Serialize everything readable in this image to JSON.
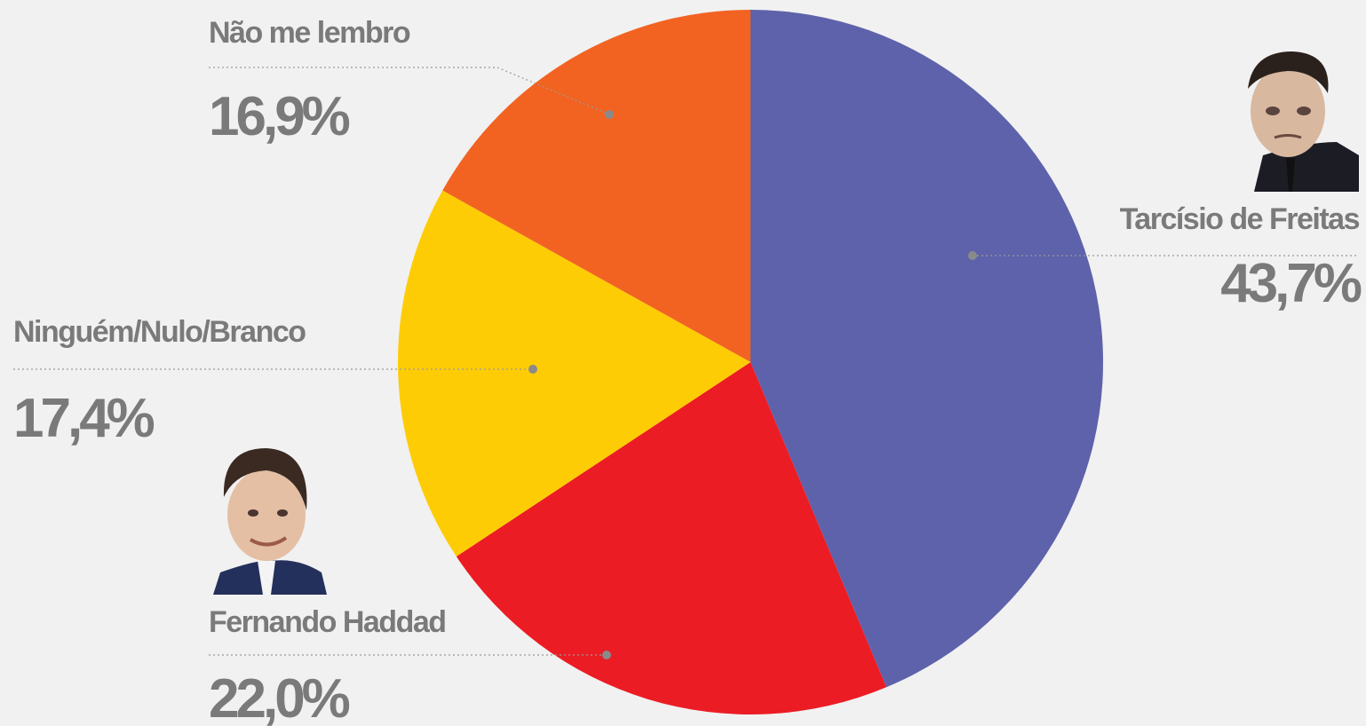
{
  "chart_data": {
    "type": "pie",
    "categories": [
      "Tarcísio de Freitas",
      "Fernando Haddad",
      "Ninguém/Nulo/Branco",
      "Não me lembro"
    ],
    "values": [
      43.7,
      22.0,
      17.4,
      16.9
    ],
    "value_labels": [
      "43,7%",
      "22,0%",
      "17,4%",
      "16,9%"
    ],
    "colors": [
      "#5e62ab",
      "#ec1c24",
      "#fecc05",
      "#f26322"
    ]
  }
}
